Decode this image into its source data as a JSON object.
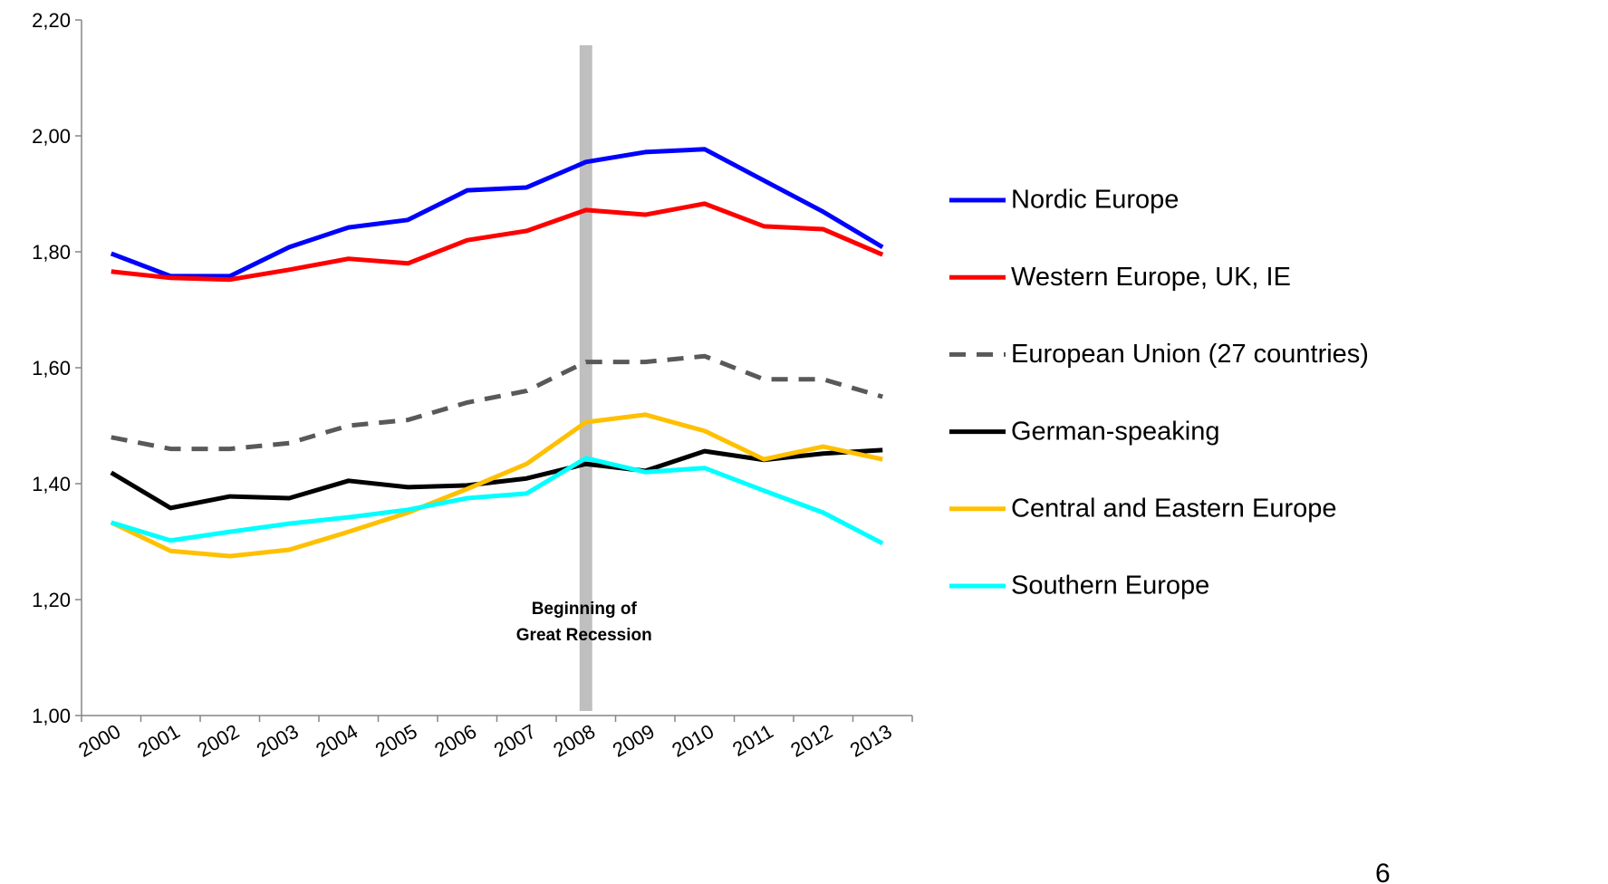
{
  "chart_data": {
    "type": "line",
    "categories": [
      "2000",
      "2001",
      "2002",
      "2003",
      "2004",
      "2005",
      "2006",
      "2007",
      "2008",
      "2009",
      "2010",
      "2011",
      "2012",
      "2013"
    ],
    "ylim": [
      1.0,
      2.2
    ],
    "yticks": [
      {
        "value": 1.0,
        "label": "1,00"
      },
      {
        "value": 1.2,
        "label": "1,20"
      },
      {
        "value": 1.4,
        "label": "1,40"
      },
      {
        "value": 1.6,
        "label": "1,60"
      },
      {
        "value": 1.8,
        "label": "1,80"
      },
      {
        "value": 2.0,
        "label": "2,00"
      },
      {
        "value": 2.2,
        "label": "2,20"
      }
    ],
    "series": [
      {
        "name": "Nordic Europe",
        "color": "#0000ff",
        "values": [
          1.797,
          1.758,
          1.758,
          1.808,
          1.842,
          1.855,
          1.906,
          1.911,
          1.955,
          1.972,
          1.977,
          1.923,
          1.869,
          1.808
        ]
      },
      {
        "name": "Western Europe, UK, IE",
        "color": "#ff0000",
        "values": [
          1.766,
          1.755,
          1.752,
          1.769,
          1.788,
          1.78,
          1.82,
          1.836,
          1.872,
          1.864,
          1.883,
          1.844,
          1.839,
          1.795
        ]
      },
      {
        "name": "European Union (27 countries)",
        "color": "#595959",
        "dashed": true,
        "values": [
          1.48,
          1.46,
          1.46,
          1.47,
          1.5,
          1.51,
          1.54,
          1.56,
          1.61,
          1.61,
          1.62,
          1.58,
          1.58,
          1.55
        ]
      },
      {
        "name": "German-speaking",
        "color": "#000000",
        "values": [
          1.419,
          1.358,
          1.378,
          1.375,
          1.405,
          1.394,
          1.397,
          1.409,
          1.434,
          1.422,
          1.456,
          1.441,
          1.452,
          1.458
        ]
      },
      {
        "name": "Central and Eastern Europe",
        "color": "#ffc000",
        "values": [
          1.333,
          1.284,
          1.275,
          1.286,
          1.317,
          1.35,
          1.391,
          1.434,
          1.506,
          1.519,
          1.491,
          1.442,
          1.464,
          1.442
        ]
      },
      {
        "name": "Southern Europe",
        "color": "#00ffff",
        "values": [
          1.333,
          1.302,
          1.317,
          1.331,
          1.342,
          1.355,
          1.375,
          1.383,
          1.444,
          1.42,
          1.427,
          1.388,
          1.35,
          1.297
        ]
      }
    ],
    "annotation": {
      "lines": [
        "Beginning of",
        "Great Recession"
      ],
      "category": "2008",
      "color": "#bfbfbf"
    },
    "page_number": "6"
  }
}
